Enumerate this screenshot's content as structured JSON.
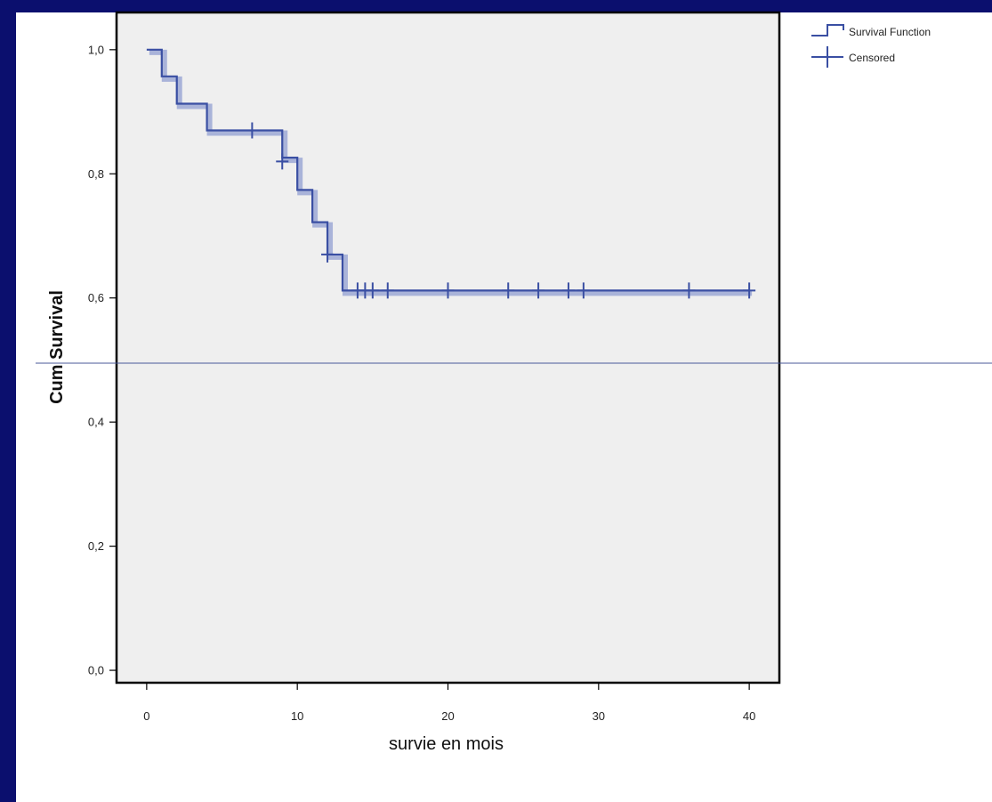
{
  "chart_data": {
    "type": "line",
    "title": "",
    "xlabel": "survie en mois",
    "ylabel": "Cum Survival",
    "xlim": [
      -2,
      42
    ],
    "ylim": [
      -0.02,
      1.06
    ],
    "xticks": [
      0,
      10,
      20,
      30,
      40
    ],
    "xtick_labels": [
      "0",
      "10",
      "20",
      "30",
      "40"
    ],
    "yticks": [
      0.0,
      0.2,
      0.4,
      0.6,
      0.8,
      1.0
    ],
    "ytick_labels": [
      "0,0",
      "0,2",
      "0,4",
      "0,6",
      "0,8",
      "1,0"
    ],
    "grid": false,
    "legend_position": "top-right outside",
    "colors": {
      "line": "#3a4fa3",
      "shadow": "#a9b3d9",
      "plot_bg": "#efefef",
      "frame": "#000000",
      "slide_bg": "#0b0f6e",
      "rule": "#4a5a9a"
    },
    "series": [
      {
        "name": "Survival Function",
        "kind": "step",
        "x": [
          0,
          1,
          2,
          4,
          9,
          10,
          11,
          12,
          13,
          40
        ],
        "y": [
          1.0,
          0.957,
          0.913,
          0.87,
          0.826,
          0.774,
          0.722,
          0.67,
          0.612,
          0.612
        ]
      },
      {
        "name": "Censored",
        "kind": "markers",
        "x": [
          7,
          9,
          12,
          14,
          14.5,
          15,
          16,
          20,
          24,
          26,
          28,
          29,
          36,
          40
        ],
        "y": [
          0.87,
          0.82,
          0.67,
          0.612,
          0.612,
          0.612,
          0.612,
          0.612,
          0.612,
          0.612,
          0.612,
          0.612,
          0.612,
          0.612
        ]
      }
    ],
    "legend": [
      {
        "label": "Survival Function",
        "icon": "step-line-icon"
      },
      {
        "label": "Censored",
        "icon": "plus-marker-icon"
      }
    ]
  }
}
